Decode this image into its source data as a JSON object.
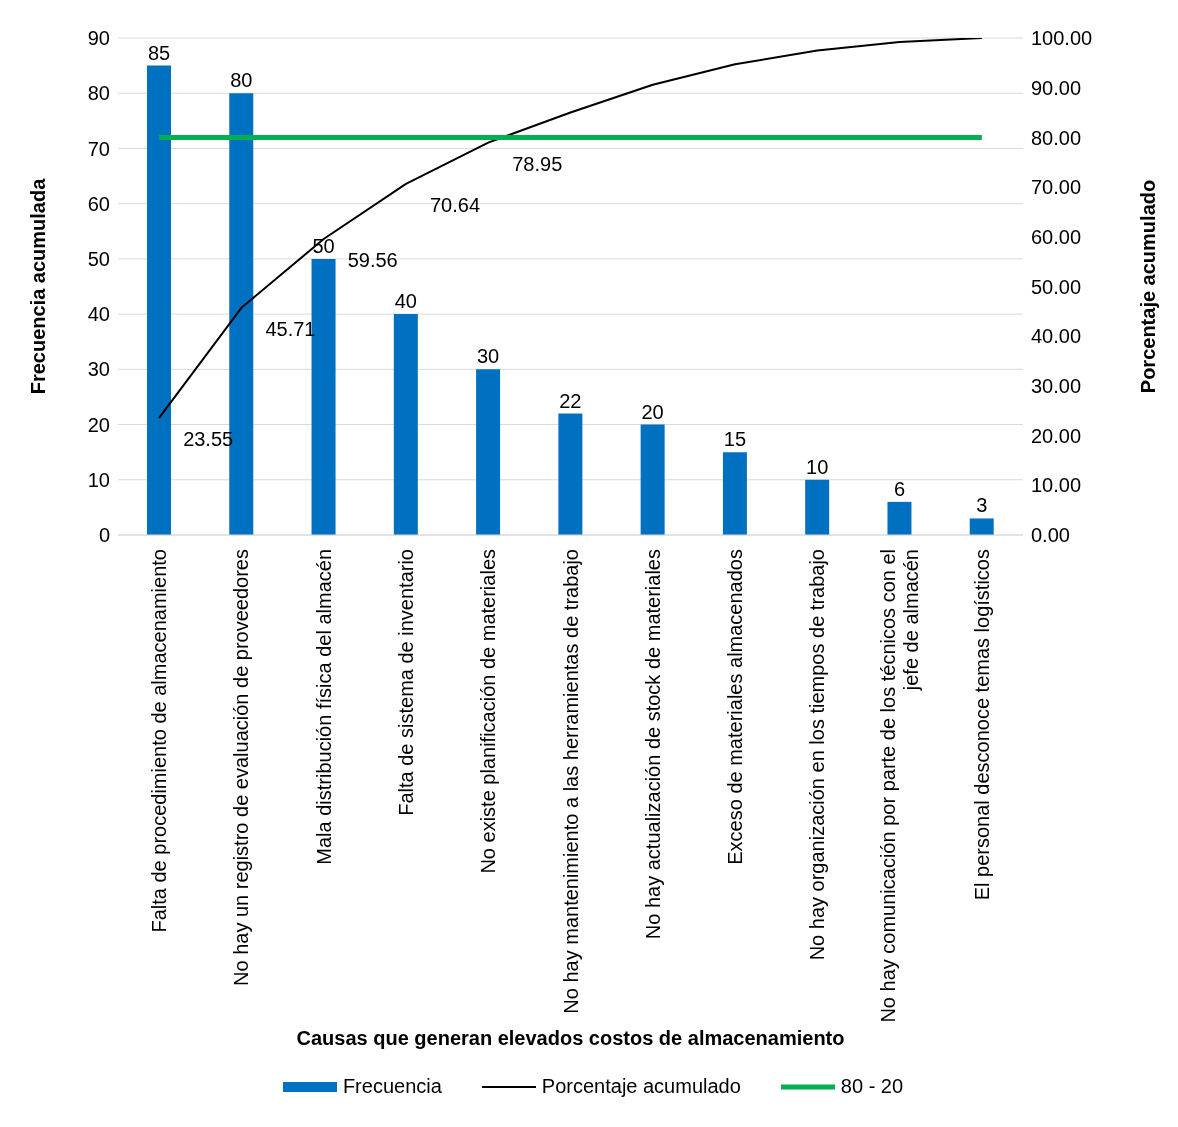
{
  "chart_data": {
    "type": "bar",
    "xlabel": "Causas que generan elevados costos de almacenamiento",
    "ylabel": "Frecuencia acumulada",
    "y2label": "Porcentaje acumulado",
    "categories": [
      "Falta de procedimiento de  almacenamiento",
      "No hay un registro de evaluación de proveedores",
      "Mala distribución física del almacén",
      "Falta de sistema de inventario",
      "No existe planificación de materiales",
      "No hay mantenimiento a las herramientas de trabajo",
      "No hay actualización de stock de materiales",
      "Exceso de materiales almacenados",
      "No hay organización en los tiempos de trabajo",
      "No hay comunicación por parte de los técnicos con el jefe de almacén",
      "El personal desconoce temas logísticos"
    ],
    "series": [
      {
        "name": "Frecuencia",
        "color": "#0070c0",
        "values": [
          85,
          80,
          50,
          40,
          30,
          22,
          20,
          15,
          10,
          6,
          3
        ],
        "data_labels": true
      },
      {
        "name": "Porcentaje acumulado",
        "type": "line",
        "axis": "y2",
        "color": "#000000",
        "values": [
          23.55,
          45.71,
          59.56,
          70.64,
          78.95,
          85.0,
          90.6,
          94.7,
          97.5,
          99.2,
          100
        ],
        "value_labels": [
          "23.55",
          "45.71",
          "59.56",
          "70.64",
          "78.95",
          null,
          null,
          null,
          null,
          null,
          null
        ]
      },
      {
        "name": "80 - 20",
        "type": "line",
        "axis": "y2",
        "color": "#00b050",
        "values": [
          80,
          80,
          80,
          80,
          80,
          80,
          80,
          80,
          80,
          80,
          80
        ]
      }
    ],
    "ylim": [
      0,
      90
    ],
    "yticks": [
      0,
      10,
      20,
      30,
      40,
      50,
      60,
      70,
      80,
      90
    ],
    "y2lim": [
      0,
      100
    ],
    "y2ticks": [
      {
        "value": 0,
        "label": "0.00"
      },
      {
        "value": 10,
        "label": "10.00"
      },
      {
        "value": 20,
        "label": "20.00"
      },
      {
        "value": 30,
        "label": "30.00"
      },
      {
        "value": 40,
        "label": "40.00"
      },
      {
        "value": 50,
        "label": "50.00"
      },
      {
        "value": 60,
        "label": "60.00"
      },
      {
        "value": 70,
        "label": "70.00"
      },
      {
        "value": 80,
        "label": "80.00"
      },
      {
        "value": 90,
        "label": "90.00"
      },
      {
        "value": 100,
        "label": "100.00"
      }
    ],
    "grid": "y",
    "legend": "bottom",
    "marker": "none"
  }
}
